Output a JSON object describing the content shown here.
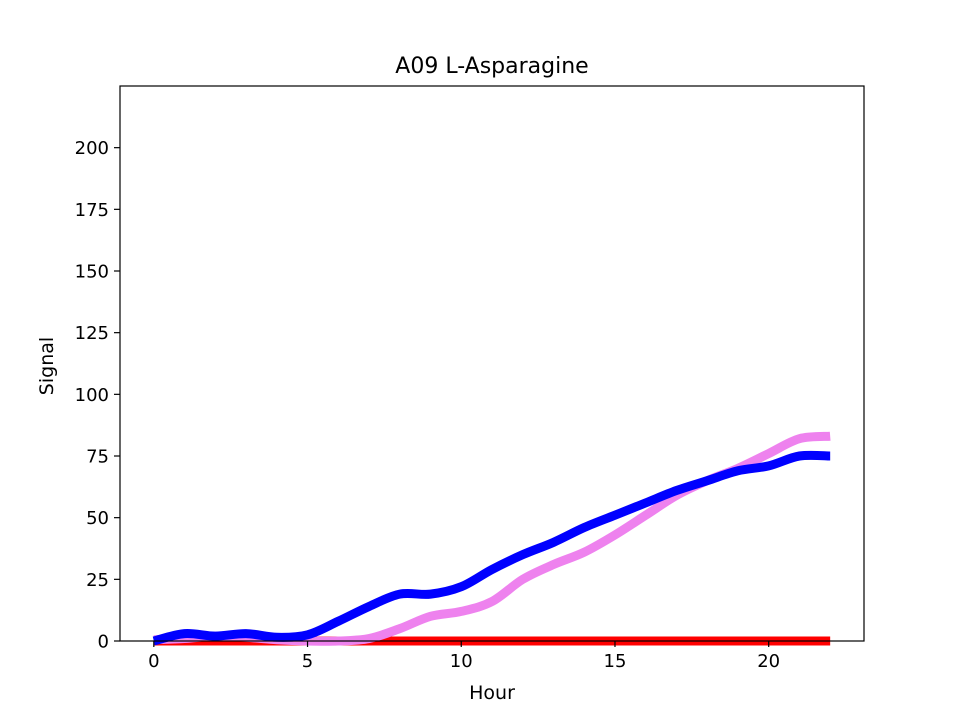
{
  "chart_data": {
    "type": "line",
    "title": "A09 L-Asparagine",
    "xlabel": "Hour",
    "ylabel": "Signal",
    "xlim": [
      -1.1,
      23.1
    ],
    "ylim": [
      0,
      225
    ],
    "xticks": [
      0,
      5,
      10,
      15,
      20
    ],
    "yticks": [
      0,
      25,
      50,
      75,
      100,
      125,
      150,
      175,
      200
    ],
    "grid": false,
    "series": [
      {
        "color": "#ff0000",
        "x": [
          0,
          2,
          4,
          6,
          8,
          10,
          12,
          14,
          16,
          18,
          20,
          22
        ],
        "y": [
          0,
          0,
          0,
          0,
          0,
          0,
          0,
          0,
          0,
          0,
          0,
          0
        ]
      },
      {
        "color": "#ee82ee",
        "x": [
          0,
          1,
          2,
          3,
          4,
          5,
          6,
          7,
          8,
          9,
          10,
          11,
          12,
          13,
          14,
          15,
          16,
          17,
          18,
          19,
          20,
          21,
          22
        ],
        "y": [
          0.5,
          1,
          2,
          1.5,
          0.5,
          0,
          0,
          1,
          5,
          10,
          12,
          16,
          25,
          31,
          36,
          43,
          51,
          59,
          65,
          70,
          76,
          82,
          83
        ]
      },
      {
        "color": "#0000ff",
        "x": [
          0,
          1,
          2,
          3,
          4,
          5,
          6,
          7,
          8,
          9,
          10,
          11,
          12,
          13,
          14,
          15,
          16,
          17,
          18,
          19,
          20,
          21,
          22
        ],
        "y": [
          0,
          3,
          2,
          3,
          1.5,
          2.5,
          8,
          14,
          19,
          19,
          22,
          29,
          35,
          40,
          46,
          51,
          56,
          61,
          65,
          69,
          71,
          75,
          75
        ]
      }
    ]
  }
}
